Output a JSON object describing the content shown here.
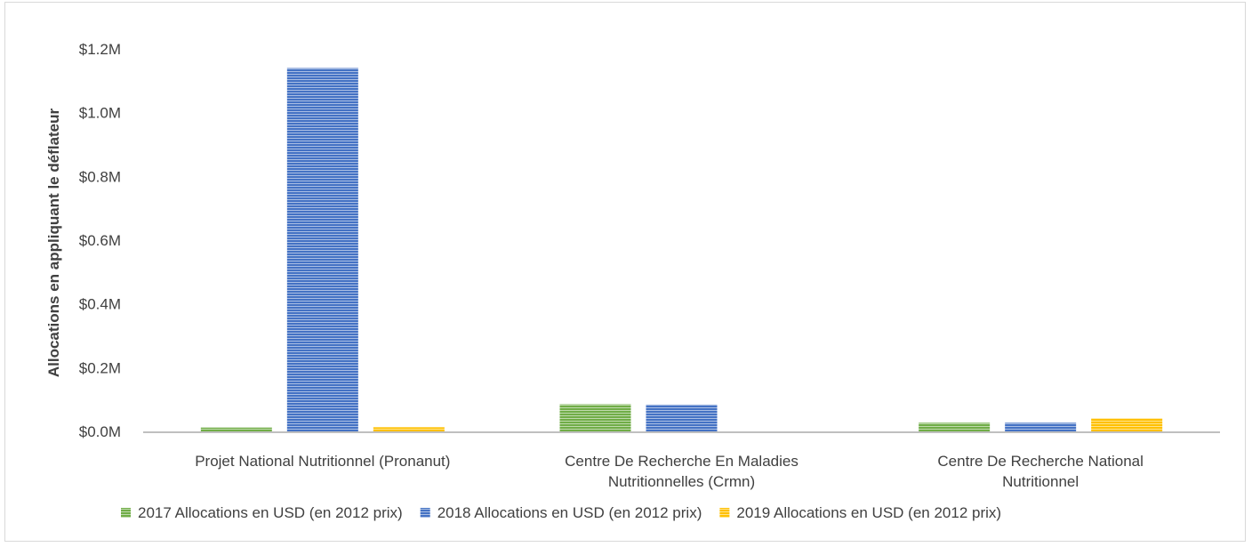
{
  "chart_data": {
    "type": "bar",
    "title": "",
    "xlabel": "",
    "ylabel": "Allocations en appliquant le déflateur",
    "ylim": [
      0,
      1.2
    ],
    "yticks": [
      "$0.0M",
      "$0.2M",
      "$0.4M",
      "$0.6M",
      "$0.8M",
      "$1.0M",
      "$1.2M"
    ],
    "categories": [
      [
        "Projet National Nutritionnel (Pronanut)"
      ],
      [
        "Centre De Recherche En Maladies",
        "Nutritionnelles (Crmn)"
      ],
      [
        "Centre De Recherche National",
        "Nutritionnel"
      ]
    ],
    "series": [
      {
        "name": "2017 Allocations en USD (en 2012 prix)",
        "color": "#70ad47",
        "values": [
          0.012,
          0.085,
          0.027
        ]
      },
      {
        "name": "2018 Allocations en USD (en 2012 prix)",
        "color": "#4472c4",
        "values": [
          1.14,
          0.084,
          0.027
        ]
      },
      {
        "name": "2019 Allocations en USD (en 2012 prix)",
        "color": "#ffc000",
        "values": [
          0.013,
          0.0,
          0.041
        ]
      }
    ],
    "grid": false,
    "legend_position": "bottom",
    "bar_pattern": "horizontal-stripes"
  }
}
